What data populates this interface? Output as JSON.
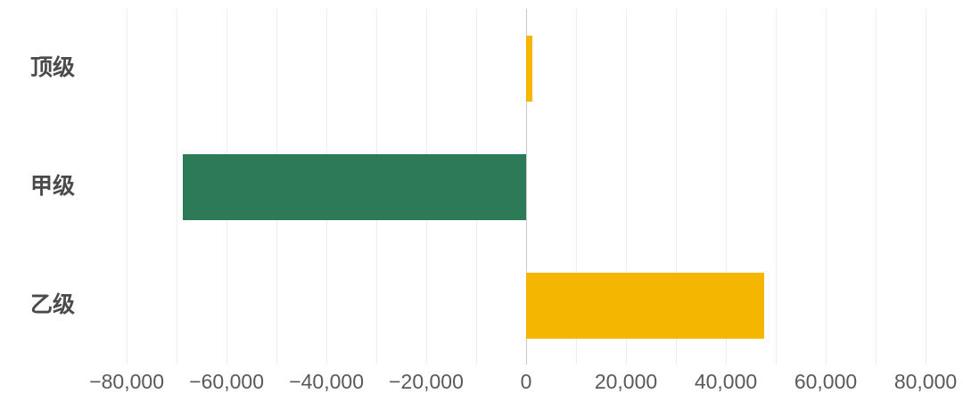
{
  "chart_data": {
    "type": "bar",
    "orientation": "horizontal",
    "categories": [
      "顶级",
      "甲级",
      "乙级"
    ],
    "values": [
      1300,
      -68750,
      47700
    ],
    "bar_colors": [
      "#F4B600",
      "#2D7A59",
      "#F4B600"
    ],
    "x_ticks": [
      {
        "value": -80000,
        "label": "−80,000"
      },
      {
        "value": -60000,
        "label": "−60,000"
      },
      {
        "value": -40000,
        "label": "−40,000"
      },
      {
        "value": -20000,
        "label": "−20,000"
      },
      {
        "value": 0,
        "label": "0"
      },
      {
        "value": 20000,
        "label": "20,000"
      },
      {
        "value": 40000,
        "label": "40,000"
      },
      {
        "value": 60000,
        "label": "60,000"
      },
      {
        "value": 80000,
        "label": "80,000"
      }
    ],
    "xlim": [
      -89300,
      87500
    ],
    "grid": {
      "on": true,
      "step": 10000,
      "min": -80000,
      "max": 80000
    },
    "legend": null,
    "colors": {
      "background": "#ffffff",
      "grid_line": "#ededed",
      "zero_line": "#c8c8c8",
      "tick_label": "#595959",
      "category_label": "#4a4a4a"
    }
  }
}
